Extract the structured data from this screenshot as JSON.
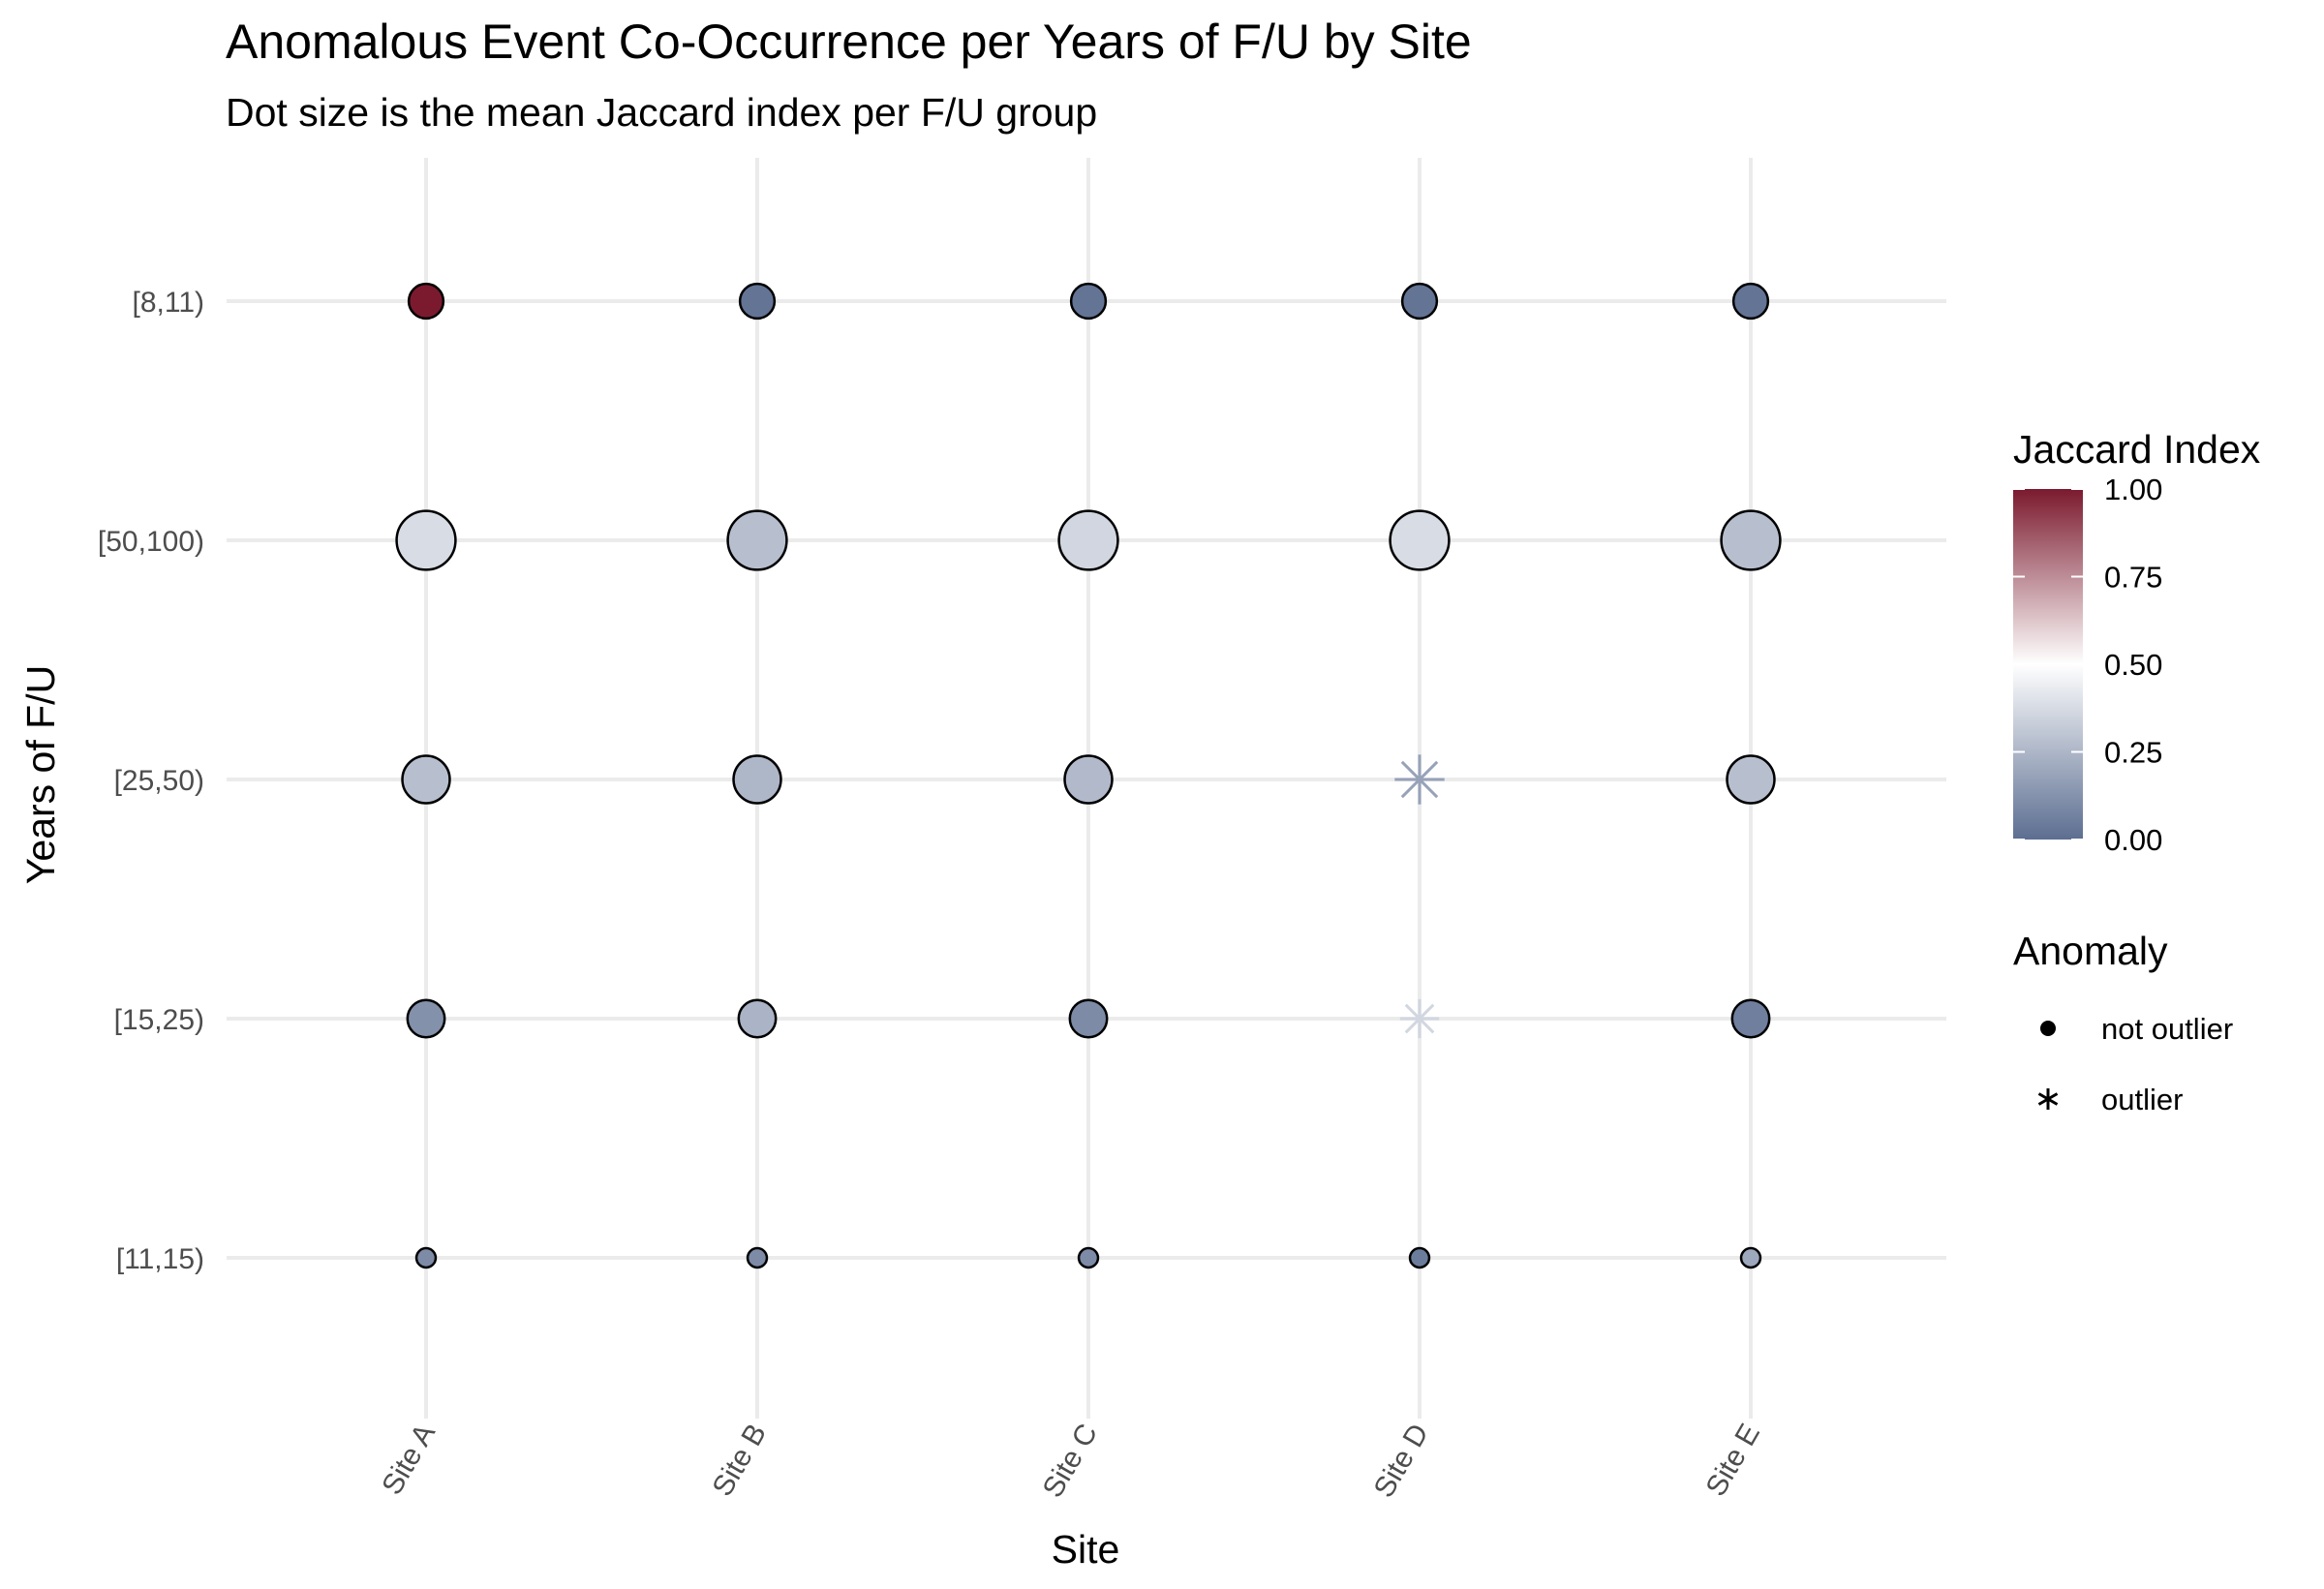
{
  "chart_data": {
    "type": "scatter",
    "title": "Anomalous Event Co-Occurrence per Years of F/U by Site",
    "subtitle": "Dot size is the mean Jaccard index per F/U group",
    "xlabel": "Site",
    "ylabel": "Years of F/U",
    "x_categories": [
      "Site A",
      "Site B",
      "Site C",
      "Site D",
      "Site E"
    ],
    "y_categories": [
      "[11,15)",
      "[15,25)",
      "[25,50)",
      "[50,100)",
      "[8,11)"
    ],
    "grid": true,
    "points": [
      {
        "x": "Site A",
        "y": "[8,11)",
        "value": 1.0,
        "size": 0.18,
        "anomaly": "not outlier"
      },
      {
        "x": "Site B",
        "y": "[8,11)",
        "value": 0.02,
        "size": 0.18,
        "anomaly": "not outlier"
      },
      {
        "x": "Site C",
        "y": "[8,11)",
        "value": 0.02,
        "size": 0.18,
        "anomaly": "not outlier"
      },
      {
        "x": "Site D",
        "y": "[8,11)",
        "value": 0.02,
        "size": 0.18,
        "anomaly": "not outlier"
      },
      {
        "x": "Site E",
        "y": "[8,11)",
        "value": 0.02,
        "size": 0.18,
        "anomaly": "not outlier"
      },
      {
        "x": "Site A",
        "y": "[50,100)",
        "value": 0.38,
        "size": 0.37,
        "anomaly": "not outlier"
      },
      {
        "x": "Site B",
        "y": "[50,100)",
        "value": 0.28,
        "size": 0.37,
        "anomaly": "not outlier"
      },
      {
        "x": "Site C",
        "y": "[50,100)",
        "value": 0.36,
        "size": 0.37,
        "anomaly": "not outlier"
      },
      {
        "x": "Site D",
        "y": "[50,100)",
        "value": 0.38,
        "size": 0.37,
        "anomaly": "not outlier"
      },
      {
        "x": "Site E",
        "y": "[50,100)",
        "value": 0.28,
        "size": 0.37,
        "anomaly": "not outlier"
      },
      {
        "x": "Site A",
        "y": "[25,50)",
        "value": 0.28,
        "size": 0.28,
        "anomaly": "not outlier"
      },
      {
        "x": "Site B",
        "y": "[25,50)",
        "value": 0.25,
        "size": 0.28,
        "anomaly": "not outlier"
      },
      {
        "x": "Site C",
        "y": "[25,50)",
        "value": 0.26,
        "size": 0.28,
        "anomaly": "not outlier"
      },
      {
        "x": "Site D",
        "y": "[25,50)",
        "value": 0.18,
        "size": 0.28,
        "anomaly": "outlier"
      },
      {
        "x": "Site E",
        "y": "[25,50)",
        "value": 0.28,
        "size": 0.28,
        "anomaly": "not outlier"
      },
      {
        "x": "Site A",
        "y": "[15,25)",
        "value": 0.12,
        "size": 0.2,
        "anomaly": "not outlier"
      },
      {
        "x": "Site B",
        "y": "[15,25)",
        "value": 0.24,
        "size": 0.2,
        "anomaly": "not outlier"
      },
      {
        "x": "Site C",
        "y": "[15,25)",
        "value": 0.1,
        "size": 0.2,
        "anomaly": "not outlier"
      },
      {
        "x": "Site D",
        "y": "[15,25)",
        "value": 0.36,
        "size": 0.2,
        "anomaly": "outlier"
      },
      {
        "x": "Site E",
        "y": "[15,25)",
        "value": 0.06,
        "size": 0.2,
        "anomaly": "not outlier"
      },
      {
        "x": "Site A",
        "y": "[11,15)",
        "value": 0.1,
        "size": 0.06,
        "anomaly": "not outlier"
      },
      {
        "x": "Site B",
        "y": "[11,15)",
        "value": 0.1,
        "size": 0.06,
        "anomaly": "not outlier"
      },
      {
        "x": "Site C",
        "y": "[11,15)",
        "value": 0.1,
        "size": 0.06,
        "anomaly": "not outlier"
      },
      {
        "x": "Site D",
        "y": "[11,15)",
        "value": 0.05,
        "size": 0.06,
        "anomaly": "not outlier"
      },
      {
        "x": "Site E",
        "y": "[11,15)",
        "value": 0.2,
        "size": 0.06,
        "anomaly": "not outlier"
      }
    ],
    "legend": {
      "color": {
        "title": "Jaccard Index",
        "ticks": [
          {
            "value": 1.0,
            "label": "1.00"
          },
          {
            "value": 0.75,
            "label": "0.75"
          },
          {
            "value": 0.5,
            "label": "0.50"
          },
          {
            "value": 0.25,
            "label": "0.25"
          },
          {
            "value": 0.0,
            "label": "0.00"
          }
        ],
        "low_color": "#5c6e91",
        "mid_color": "#ffffff",
        "high_color": "#7b1a2e",
        "midpoint": 0.5
      },
      "shape": {
        "title": "Anomaly",
        "items": [
          {
            "label": "not outlier",
            "shape": "circle"
          },
          {
            "label": "outlier",
            "shape": "asterisk"
          }
        ]
      },
      "placement": "right"
    }
  }
}
